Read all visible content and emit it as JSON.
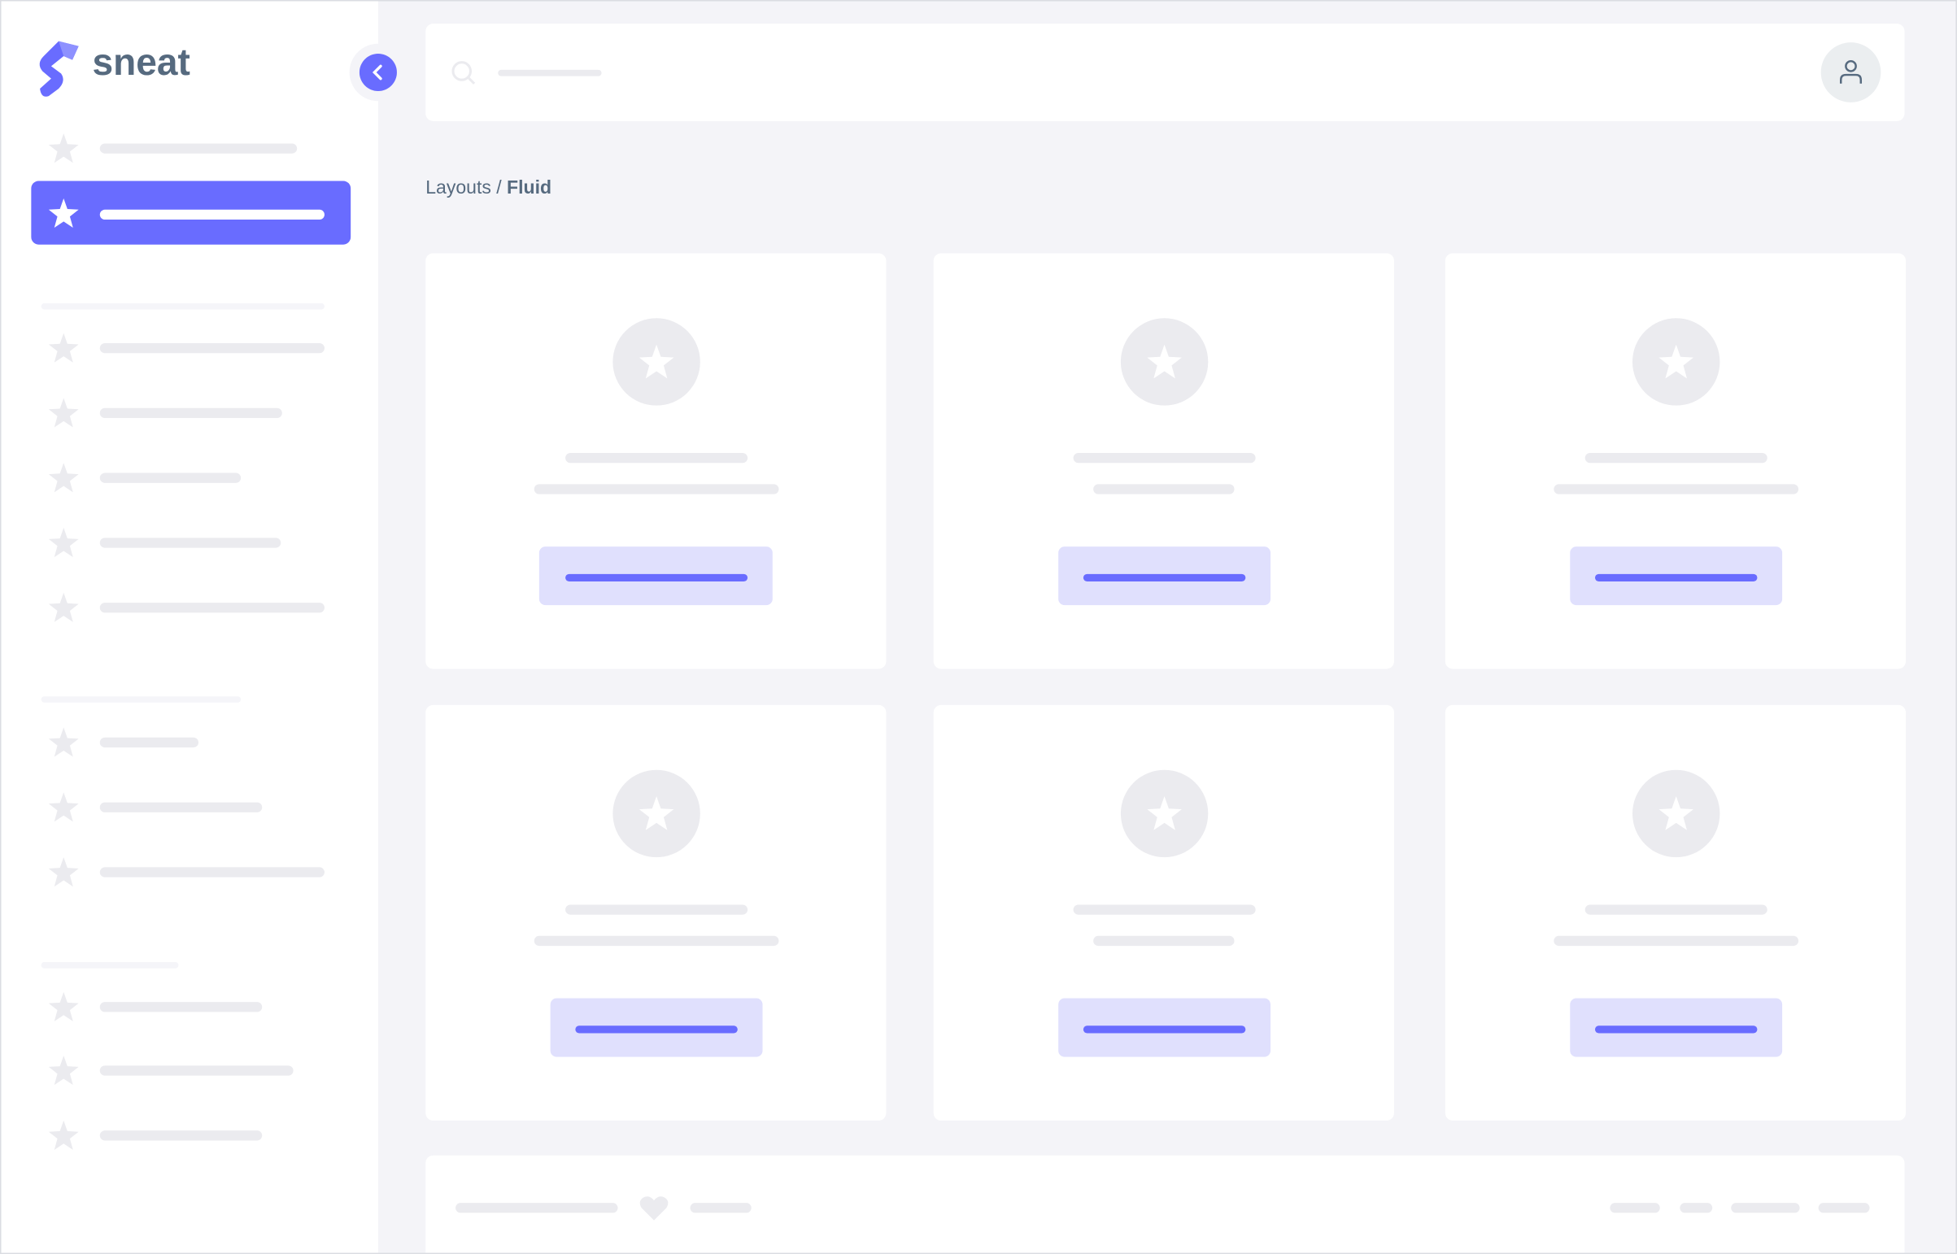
{
  "brand": {
    "name": "sneat",
    "logo_icon": "sneat-s-logo"
  },
  "breadcrumb": {
    "parent": "Layouts",
    "separator": " / ",
    "current": "Fluid"
  },
  "colors": {
    "primary": "#696cff",
    "primary_light": "#e0e0fd",
    "skeleton": "#ebebef",
    "background": "#f4f4f8",
    "heading": "#566a7f"
  },
  "icons": {
    "nav": "star-icon",
    "search": "search-icon",
    "user": "user-icon",
    "collapse": "chevron-left-icon",
    "footer": "heart-icon",
    "card": "star-icon"
  }
}
